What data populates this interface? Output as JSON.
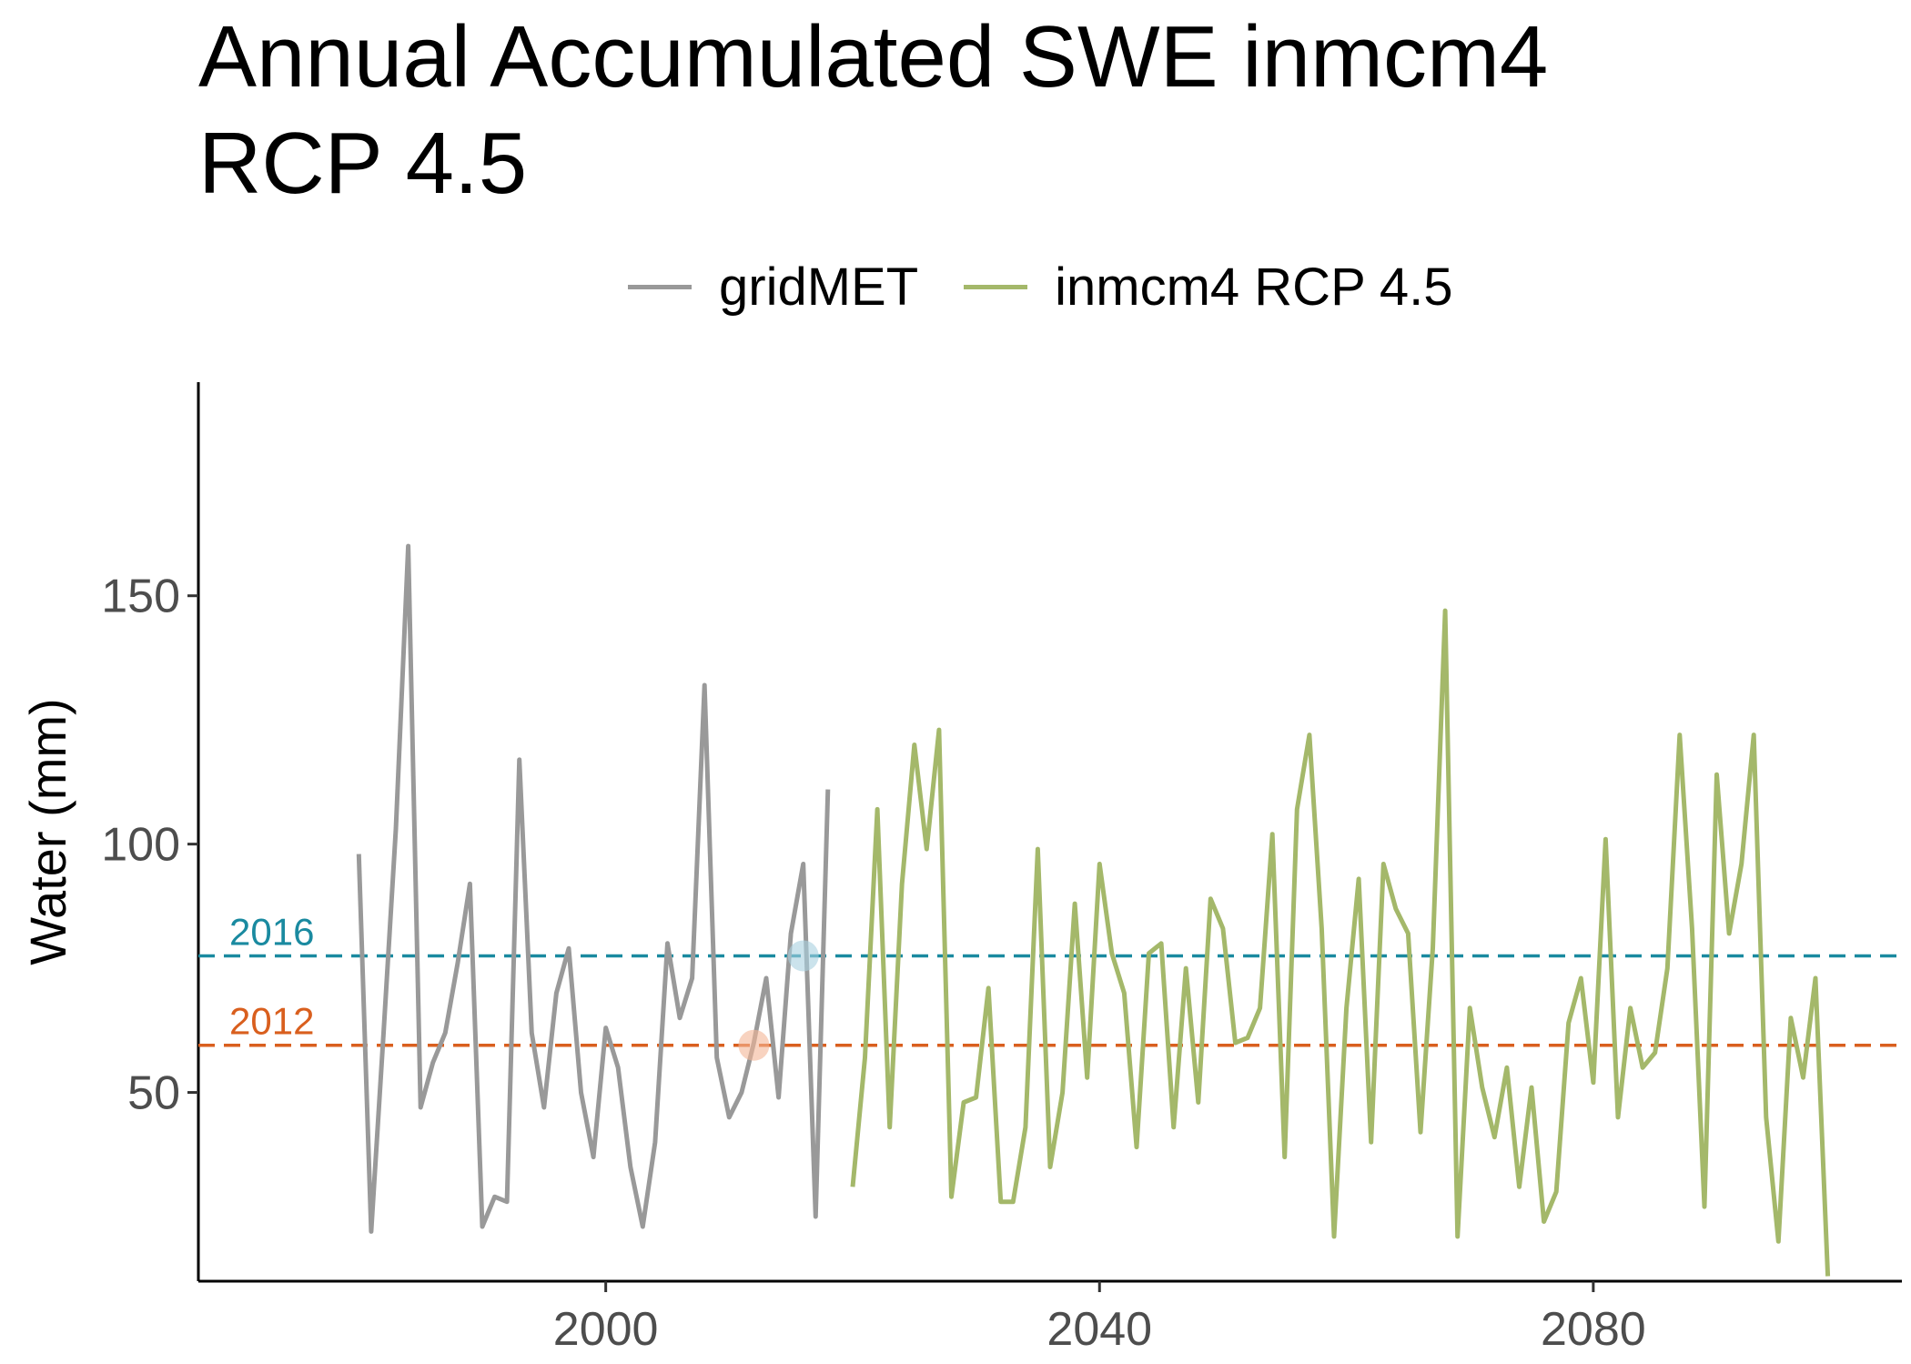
{
  "chart_data": {
    "type": "line",
    "title": "Annual Accumulated SWE inmcm4\nRCP 4.5",
    "title_lines": [
      "Annual Accumulated SWE inmcm4",
      "RCP 4.5"
    ],
    "xlabel": "",
    "ylabel": "Water (mm)",
    "xlim": [
      1967,
      2105
    ],
    "ylim": [
      12,
      193
    ],
    "x_ticks": [
      2000,
      2040,
      2080
    ],
    "y_ticks": [
      50,
      100,
      150
    ],
    "grid": false,
    "legend_position": "top",
    "series": [
      {
        "name": "gridMET",
        "color": "#999999",
        "x": [
          1980,
          1981,
          1982,
          1983,
          1984,
          1985,
          1986,
          1987,
          1988,
          1989,
          1990,
          1991,
          1992,
          1993,
          1994,
          1995,
          1996,
          1997,
          1998,
          1999,
          2000,
          2001,
          2002,
          2003,
          2004,
          2005,
          2006,
          2007,
          2008,
          2009,
          2010,
          2011,
          2012,
          2013,
          2014,
          2015,
          2016,
          2017,
          2018,
          2019
        ],
        "values": [
          98,
          22,
          62,
          103,
          160,
          47,
          56,
          62,
          76,
          92,
          23,
          29,
          28,
          117,
          62,
          47,
          70,
          79,
          50,
          37,
          63,
          55,
          35,
          23,
          40,
          80,
          65,
          73,
          132,
          57,
          45,
          50,
          60,
          73,
          49,
          82,
          96,
          25,
          111,
          null
        ]
      },
      {
        "name": "inmcm4 RCP 4.5",
        "color": "#a4b86a",
        "x": [
          2020,
          2021,
          2022,
          2023,
          2024,
          2025,
          2026,
          2027,
          2028,
          2029,
          2030,
          2031,
          2032,
          2033,
          2034,
          2035,
          2036,
          2037,
          2038,
          2039,
          2040,
          2041,
          2042,
          2043,
          2044,
          2045,
          2046,
          2047,
          2048,
          2049,
          2050,
          2051,
          2052,
          2053,
          2054,
          2055,
          2056,
          2057,
          2058,
          2059,
          2060,
          2061,
          2062,
          2063,
          2064,
          2065,
          2066,
          2067,
          2068,
          2069,
          2070,
          2071,
          2072,
          2073,
          2074,
          2075,
          2076,
          2077,
          2078,
          2079,
          2080,
          2081,
          2082,
          2083,
          2084,
          2085,
          2086,
          2087,
          2088,
          2089,
          2090,
          2091,
          2092,
          2093,
          2094,
          2095,
          2096,
          2097,
          2098,
          2099
        ],
        "values": [
          31,
          57,
          107,
          43,
          92,
          120,
          99,
          123,
          29,
          48,
          49,
          71,
          28,
          28,
          43,
          99,
          35,
          50,
          88,
          53,
          96,
          78,
          70,
          39,
          78,
          80,
          43,
          75,
          48,
          89,
          83,
          60,
          61,
          67,
          102,
          37,
          107,
          122,
          83,
          21,
          67,
          93,
          40,
          96,
          87,
          82,
          42,
          79,
          147,
          21,
          67,
          51,
          41,
          55,
          31,
          51,
          24,
          30,
          64,
          73,
          52,
          101,
          45,
          67,
          55,
          58,
          75,
          122,
          83,
          27,
          114,
          82,
          96,
          122,
          45,
          20,
          65,
          53,
          73,
          13
        ]
      }
    ],
    "reference_lines": [
      {
        "label": "2016",
        "y": 77.5,
        "color": "#1a8aa0",
        "style": "dashed"
      },
      {
        "label": "2012",
        "y": 59.5,
        "color": "#d95f1e",
        "style": "dashed"
      }
    ],
    "highlight_points": [
      {
        "x": 2016,
        "y": 77.5,
        "color": "#a8d0e0",
        "opacity": 0.6
      },
      {
        "x": 2012,
        "y": 59.5,
        "color": "#f4b596",
        "opacity": 0.6
      }
    ]
  }
}
